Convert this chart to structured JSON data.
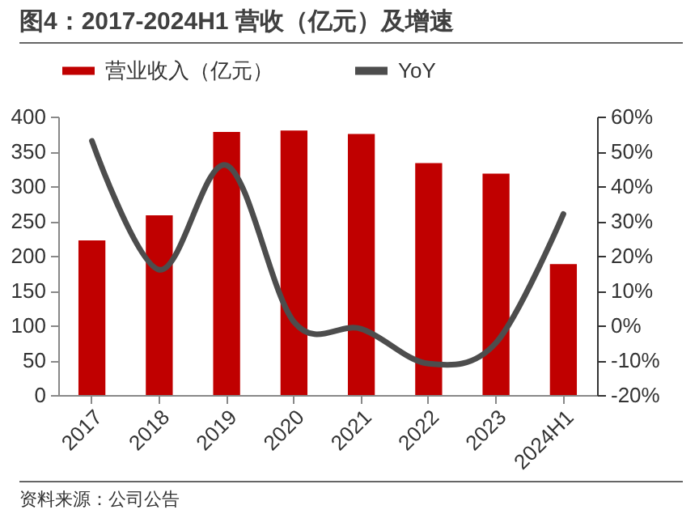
{
  "chart_data": {
    "type": "bar",
    "title": "图4：2017-2024H1 营收（亿元）及增速",
    "categories": [
      "2017",
      "2018",
      "2019",
      "2020",
      "2021",
      "2022",
      "2023",
      "2024H1"
    ],
    "series": [
      {
        "name": "营业收入（亿元）",
        "color": "#c00000",
        "values": [
          222,
          258,
          378,
          380,
          375,
          333,
          318,
          188
        ]
      },
      {
        "name": "YoY",
        "type": "line",
        "axis": "y2",
        "color": "#4d4d4d",
        "values": [
          53,
          16,
          46,
          1,
          -1,
          -11,
          -5,
          32
        ]
      }
    ],
    "ylim": [
      0,
      400
    ],
    "yticks": [
      0,
      50,
      100,
      150,
      200,
      250,
      300,
      350,
      400
    ],
    "y2lim": [
      -20,
      60
    ],
    "y2ticks": [
      {
        "value": -20,
        "label": "-20%"
      },
      {
        "value": -10,
        "label": "-10%"
      },
      {
        "value": 0,
        "label": "0%"
      },
      {
        "value": 10,
        "label": "10%"
      },
      {
        "value": 20,
        "label": "20%"
      },
      {
        "value": 30,
        "label": "30%"
      },
      {
        "value": 40,
        "label": "40%"
      },
      {
        "value": 50,
        "label": "50%"
      },
      {
        "value": 60,
        "label": "60%"
      }
    ],
    "legend": "top",
    "grid": false,
    "annotations": [
      "资料来源：公司公告"
    ]
  }
}
